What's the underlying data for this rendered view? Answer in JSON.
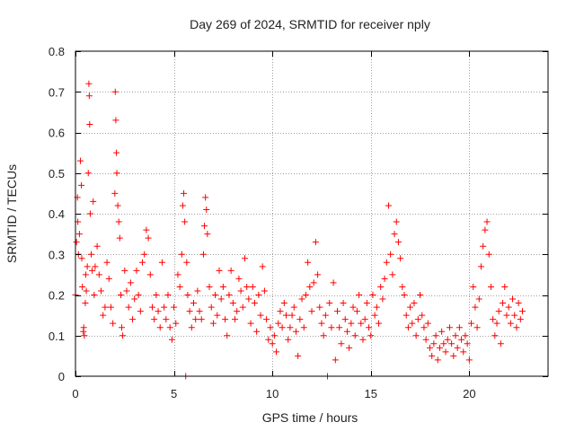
{
  "chart_data": {
    "type": "scatter",
    "title": "Day 269 of 2024, SRMTID for receiver nply",
    "xlabel": "GPS time / hours",
    "ylabel": "SRMTID / TECUs",
    "xlim": [
      0,
      24
    ],
    "ylim": [
      0,
      0.8
    ],
    "x_ticks": [
      0,
      5,
      10,
      15,
      20
    ],
    "x_tick_labels": [
      "0",
      "5",
      "10",
      "15",
      "20"
    ],
    "y_ticks": [
      0,
      0.1,
      0.2,
      0.3,
      0.4,
      0.5,
      0.6,
      0.7,
      0.8
    ],
    "y_tick_labels": [
      "0",
      "0.1",
      "0.2",
      "0.3",
      "0.4",
      "0.5",
      "0.6",
      "0.7",
      "0.8"
    ],
    "grid": true,
    "marker": "+",
    "marker_color": "#ff0000",
    "series": [
      {
        "name": "SRMTID",
        "points": [
          [
            0.0,
            0.2
          ],
          [
            0.05,
            0.33
          ],
          [
            0.1,
            0.44
          ],
          [
            0.12,
            0.38
          ],
          [
            0.15,
            0.3
          ],
          [
            0.2,
            0.35
          ],
          [
            0.25,
            0.53
          ],
          [
            0.3,
            0.47
          ],
          [
            0.32,
            0.29
          ],
          [
            0.35,
            0.22
          ],
          [
            0.4,
            0.11
          ],
          [
            0.42,
            0.12
          ],
          [
            0.45,
            0.1
          ],
          [
            0.5,
            0.18
          ],
          [
            0.52,
            0.25
          ],
          [
            0.55,
            0.21
          ],
          [
            0.6,
            0.27
          ],
          [
            0.65,
            0.5
          ],
          [
            0.68,
            0.72
          ],
          [
            0.7,
            0.69
          ],
          [
            0.72,
            0.62
          ],
          [
            0.75,
            0.4
          ],
          [
            0.8,
            0.3
          ],
          [
            0.85,
            0.26
          ],
          [
            0.9,
            0.43
          ],
          [
            0.95,
            0.2
          ],
          [
            1.0,
            0.27
          ],
          [
            1.1,
            0.32
          ],
          [
            1.2,
            0.25
          ],
          [
            1.3,
            0.21
          ],
          [
            1.4,
            0.15
          ],
          [
            1.5,
            0.17
          ],
          [
            1.6,
            0.28
          ],
          [
            1.7,
            0.24
          ],
          [
            1.8,
            0.17
          ],
          [
            1.9,
            0.13
          ],
          [
            2.0,
            0.45
          ],
          [
            2.02,
            0.7
          ],
          [
            2.05,
            0.63
          ],
          [
            2.08,
            0.55
          ],
          [
            2.1,
            0.5
          ],
          [
            2.15,
            0.42
          ],
          [
            2.2,
            0.38
          ],
          [
            2.25,
            0.34
          ],
          [
            2.3,
            0.2
          ],
          [
            2.35,
            0.12
          ],
          [
            2.4,
            0.1
          ],
          [
            2.5,
            0.26
          ],
          [
            2.6,
            0.21
          ],
          [
            2.7,
            0.17
          ],
          [
            2.8,
            0.23
          ],
          [
            2.9,
            0.14
          ],
          [
            3.0,
            0.19
          ],
          [
            3.1,
            0.26
          ],
          [
            3.2,
            0.2
          ],
          [
            3.3,
            0.16
          ],
          [
            3.4,
            0.28
          ],
          [
            3.5,
            0.3
          ],
          [
            3.6,
            0.36
          ],
          [
            3.7,
            0.34
          ],
          [
            3.8,
            0.25
          ],
          [
            3.9,
            0.17
          ],
          [
            4.0,
            0.14
          ],
          [
            4.1,
            0.2
          ],
          [
            4.2,
            0.16
          ],
          [
            4.3,
            0.12
          ],
          [
            4.4,
            0.28
          ],
          [
            4.5,
            0.17
          ],
          [
            4.6,
            0.14
          ],
          [
            4.7,
            0.2
          ],
          [
            4.8,
            0.12
          ],
          [
            4.9,
            0.09
          ],
          [
            5.0,
            0.17
          ],
          [
            5.1,
            0.13
          ],
          [
            5.2,
            0.25
          ],
          [
            5.3,
            0.22
          ],
          [
            5.4,
            0.3
          ],
          [
            5.45,
            0.42
          ],
          [
            5.5,
            0.45
          ],
          [
            5.55,
            0.38
          ],
          [
            5.6,
            0.0
          ],
          [
            5.65,
            0.28
          ],
          [
            5.7,
            0.2
          ],
          [
            5.8,
            0.16
          ],
          [
            5.9,
            0.12
          ],
          [
            6.0,
            0.18
          ],
          [
            6.1,
            0.14
          ],
          [
            6.2,
            0.21
          ],
          [
            6.3,
            0.16
          ],
          [
            6.4,
            0.14
          ],
          [
            6.5,
            0.3
          ],
          [
            6.55,
            0.37
          ],
          [
            6.6,
            0.44
          ],
          [
            6.65,
            0.41
          ],
          [
            6.7,
            0.35
          ],
          [
            6.8,
            0.22
          ],
          [
            6.9,
            0.17
          ],
          [
            7.0,
            0.13
          ],
          [
            7.1,
            0.2
          ],
          [
            7.2,
            0.15
          ],
          [
            7.3,
            0.26
          ],
          [
            7.4,
            0.19
          ],
          [
            7.5,
            0.22
          ],
          [
            7.6,
            0.14
          ],
          [
            7.7,
            0.1
          ],
          [
            7.8,
            0.2
          ],
          [
            7.9,
            0.26
          ],
          [
            8.0,
            0.18
          ],
          [
            8.1,
            0.14
          ],
          [
            8.2,
            0.16
          ],
          [
            8.3,
            0.24
          ],
          [
            8.4,
            0.21
          ],
          [
            8.5,
            0.17
          ],
          [
            8.6,
            0.29
          ],
          [
            8.7,
            0.22
          ],
          [
            8.8,
            0.19
          ],
          [
            8.9,
            0.13
          ],
          [
            9.0,
            0.22
          ],
          [
            9.1,
            0.18
          ],
          [
            9.2,
            0.11
          ],
          [
            9.3,
            0.2
          ],
          [
            9.4,
            0.15
          ],
          [
            9.5,
            0.27
          ],
          [
            9.6,
            0.21
          ],
          [
            9.7,
            0.14
          ],
          [
            9.8,
            0.09
          ],
          [
            9.9,
            0.12
          ],
          [
            10.0,
            0.08
          ],
          [
            10.1,
            0.1
          ],
          [
            10.2,
            0.06
          ],
          [
            10.3,
            0.13
          ],
          [
            10.4,
            0.16
          ],
          [
            10.5,
            0.12
          ],
          [
            10.6,
            0.18
          ],
          [
            10.7,
            0.15
          ],
          [
            10.8,
            0.09
          ],
          [
            10.9,
            0.12
          ],
          [
            11.0,
            0.15
          ],
          [
            11.1,
            0.17
          ],
          [
            11.2,
            0.11
          ],
          [
            11.3,
            0.05
          ],
          [
            11.4,
            0.14
          ],
          [
            11.5,
            0.19
          ],
          [
            11.6,
            0.12
          ],
          [
            11.7,
            0.2
          ],
          [
            11.8,
            0.28
          ],
          [
            11.9,
            0.22
          ],
          [
            12.0,
            0.16
          ],
          [
            12.1,
            0.23
          ],
          [
            12.2,
            0.33
          ],
          [
            12.3,
            0.25
          ],
          [
            12.4,
            0.17
          ],
          [
            12.5,
            0.13
          ],
          [
            12.6,
            0.1
          ],
          [
            12.7,
            0.15
          ],
          [
            12.8,
            0.0
          ],
          [
            12.9,
            0.18
          ],
          [
            13.0,
            0.12
          ],
          [
            13.1,
            0.23
          ],
          [
            13.2,
            0.04
          ],
          [
            13.3,
            0.16
          ],
          [
            13.4,
            0.12
          ],
          [
            13.5,
            0.08
          ],
          [
            13.6,
            0.18
          ],
          [
            13.7,
            0.14
          ],
          [
            13.8,
            0.11
          ],
          [
            13.9,
            0.07
          ],
          [
            14.0,
            0.13
          ],
          [
            14.1,
            0.17
          ],
          [
            14.2,
            0.1
          ],
          [
            14.3,
            0.16
          ],
          [
            14.4,
            0.2
          ],
          [
            14.5,
            0.13
          ],
          [
            14.6,
            0.09
          ],
          [
            14.7,
            0.14
          ],
          [
            14.8,
            0.18
          ],
          [
            14.9,
            0.12
          ],
          [
            15.0,
            0.1
          ],
          [
            15.1,
            0.2
          ],
          [
            15.2,
            0.15
          ],
          [
            15.3,
            0.17
          ],
          [
            15.4,
            0.13
          ],
          [
            15.5,
            0.22
          ],
          [
            15.6,
            0.19
          ],
          [
            15.7,
            0.24
          ],
          [
            15.8,
            0.28
          ],
          [
            15.9,
            0.42
          ],
          [
            16.0,
            0.3
          ],
          [
            16.1,
            0.25
          ],
          [
            16.2,
            0.35
          ],
          [
            16.3,
            0.38
          ],
          [
            16.4,
            0.33
          ],
          [
            16.5,
            0.29
          ],
          [
            16.6,
            0.22
          ],
          [
            16.7,
            0.2
          ],
          [
            16.8,
            0.15
          ],
          [
            16.9,
            0.12
          ],
          [
            17.0,
            0.17
          ],
          [
            17.1,
            0.13
          ],
          [
            17.2,
            0.18
          ],
          [
            17.3,
            0.1
          ],
          [
            17.4,
            0.14
          ],
          [
            17.5,
            0.2
          ],
          [
            17.6,
            0.15
          ],
          [
            17.7,
            0.12
          ],
          [
            17.8,
            0.09
          ],
          [
            17.9,
            0.13
          ],
          [
            18.0,
            0.07
          ],
          [
            18.1,
            0.05
          ],
          [
            18.2,
            0.08
          ],
          [
            18.3,
            0.1
          ],
          [
            18.4,
            0.04
          ],
          [
            18.5,
            0.07
          ],
          [
            18.6,
            0.11
          ],
          [
            18.7,
            0.08
          ],
          [
            18.8,
            0.06
          ],
          [
            18.9,
            0.09
          ],
          [
            19.0,
            0.12
          ],
          [
            19.1,
            0.08
          ],
          [
            19.2,
            0.05
          ],
          [
            19.3,
            0.1
          ],
          [
            19.4,
            0.07
          ],
          [
            19.5,
            0.12
          ],
          [
            19.6,
            0.09
          ],
          [
            19.7,
            0.06
          ],
          [
            19.8,
            0.1
          ],
          [
            19.9,
            0.08
          ],
          [
            20.0,
            0.04
          ],
          [
            20.1,
            0.13
          ],
          [
            20.2,
            0.22
          ],
          [
            20.3,
            0.17
          ],
          [
            20.4,
            0.12
          ],
          [
            20.5,
            0.19
          ],
          [
            20.6,
            0.27
          ],
          [
            20.7,
            0.32
          ],
          [
            20.8,
            0.36
          ],
          [
            20.9,
            0.38
          ],
          [
            21.0,
            0.3
          ],
          [
            21.1,
            0.22
          ],
          [
            21.2,
            0.14
          ],
          [
            21.3,
            0.1
          ],
          [
            21.4,
            0.13
          ],
          [
            21.5,
            0.16
          ],
          [
            21.6,
            0.08
          ],
          [
            21.7,
            0.18
          ],
          [
            21.8,
            0.22
          ],
          [
            21.9,
            0.15
          ],
          [
            22.0,
            0.17
          ],
          [
            22.1,
            0.13
          ],
          [
            22.2,
            0.19
          ],
          [
            22.3,
            0.15
          ],
          [
            22.4,
            0.12
          ],
          [
            22.5,
            0.18
          ],
          [
            22.6,
            0.14
          ],
          [
            22.7,
            0.16
          ]
        ]
      }
    ]
  }
}
